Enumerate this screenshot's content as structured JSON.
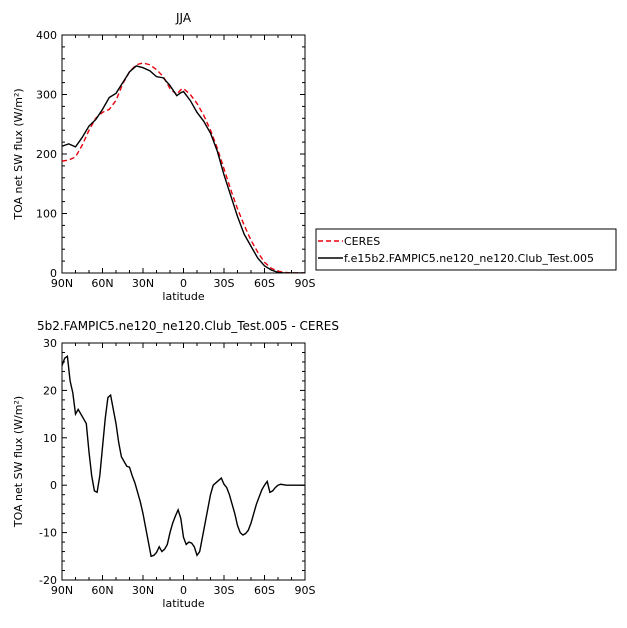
{
  "chart_data": [
    {
      "type": "line",
      "title": "JJA",
      "xlabel": "latitude",
      "ylabel": "TOA net SW flux (W/m²)",
      "xlim": [
        90,
        -90
      ],
      "ylim": [
        0,
        400
      ],
      "xticks": [
        {
          "v": 90,
          "label": "90N"
        },
        {
          "v": 60,
          "label": "60N"
        },
        {
          "v": 30,
          "label": "30N"
        },
        {
          "v": 0,
          "label": "0"
        },
        {
          "v": -30,
          "label": "30S"
        },
        {
          "v": -60,
          "label": "60S"
        },
        {
          "v": -90,
          "label": "90S"
        }
      ],
      "yticks": [
        0,
        100,
        200,
        300,
        400
      ],
      "legend": "right",
      "series": [
        {
          "name": "CERES",
          "color": "#e8000b",
          "dash": "dashed",
          "x": [
            90,
            85,
            80,
            75,
            70,
            65,
            60,
            55,
            50,
            45,
            40,
            35,
            30,
            25,
            20,
            15,
            10,
            5,
            2,
            0,
            -5,
            -10,
            -15,
            -20,
            -25,
            -30,
            -35,
            -40,
            -45,
            -50,
            -55,
            -60,
            -65,
            -70,
            -75,
            -80,
            -90
          ],
          "y": [
            188,
            190,
            195,
            215,
            240,
            260,
            270,
            275,
            290,
            318,
            338,
            350,
            353,
            350,
            342,
            330,
            310,
            300,
            308,
            310,
            300,
            285,
            265,
            240,
            210,
            175,
            140,
            108,
            80,
            55,
            35,
            18,
            8,
            3,
            1,
            0,
            0
          ]
        },
        {
          "name": "f.e15b2.FAMPIC5.ne120_ne120.Club_Test.005",
          "color": "#000000",
          "dash": "solid",
          "x": [
            90,
            85,
            80,
            75,
            70,
            65,
            60,
            55,
            50,
            45,
            40,
            35,
            30,
            25,
            20,
            15,
            10,
            5,
            2,
            0,
            -5,
            -10,
            -15,
            -20,
            -25,
            -30,
            -35,
            -40,
            -45,
            -50,
            -55,
            -60,
            -65,
            -70,
            -75,
            -80,
            -90
          ],
          "y": [
            213,
            217,
            212,
            228,
            247,
            258,
            275,
            295,
            302,
            320,
            338,
            348,
            345,
            340,
            330,
            328,
            315,
            298,
            303,
            305,
            290,
            270,
            255,
            235,
            205,
            165,
            130,
            95,
            65,
            45,
            25,
            12,
            5,
            1,
            0,
            0,
            0
          ]
        }
      ]
    },
    {
      "type": "line",
      "title": "5b2.FAMPIC5.ne120_ne120.Club_Test.005 - CERES",
      "xlabel": "latitude",
      "ylabel": "TOA net SW flux (W/m²)",
      "xlim": [
        90,
        -90
      ],
      "ylim": [
        -20,
        30
      ],
      "xticks": [
        {
          "v": 90,
          "label": "90N"
        },
        {
          "v": 60,
          "label": "60N"
        },
        {
          "v": 30,
          "label": "30N"
        },
        {
          "v": 0,
          "label": "0"
        },
        {
          "v": -30,
          "label": "30S"
        },
        {
          "v": -60,
          "label": "60S"
        },
        {
          "v": -90,
          "label": "90S"
        }
      ],
      "yticks": [
        -20,
        -10,
        0,
        10,
        20,
        30
      ],
      "series": [
        {
          "color": "#000000",
          "dash": "solid",
          "x": [
            90,
            88,
            86,
            84,
            82,
            80,
            78,
            76,
            74,
            72,
            70,
            68,
            66,
            64,
            62,
            60,
            58,
            56,
            54,
            52,
            50,
            48,
            46,
            44,
            42,
            40,
            38,
            36,
            34,
            32,
            30,
            28,
            26,
            24,
            22,
            20,
            18,
            16,
            14,
            12,
            10,
            8,
            6,
            4,
            2,
            0,
            -2,
            -4,
            -6,
            -8,
            -10,
            -12,
            -14,
            -16,
            -18,
            -20,
            -22,
            -24,
            -26,
            -28,
            -30,
            -32,
            -34,
            -36,
            -38,
            -40,
            -42,
            -44,
            -46,
            -48,
            -50,
            -52,
            -54,
            -56,
            -58,
            -60,
            -62,
            -64,
            -66,
            -68,
            -70,
            -72,
            -74,
            -76,
            -78,
            -80,
            -82,
            -84,
            -86,
            -88,
            -90
          ],
          "y": [
            25.2,
            26.8,
            27.2,
            22,
            19.5,
            15,
            16,
            15,
            14,
            13,
            7,
            2,
            -1.2,
            -1.5,
            2,
            8,
            14,
            18.5,
            19,
            16,
            13,
            9,
            6,
            5,
            4,
            3.8,
            2,
            0.5,
            -1.5,
            -3.5,
            -6,
            -9,
            -12,
            -15,
            -14.8,
            -14.2,
            -13,
            -14,
            -13.5,
            -12.5,
            -10,
            -8,
            -6.5,
            -5.2,
            -7,
            -11,
            -12.5,
            -12,
            -12.2,
            -13,
            -14.8,
            -14,
            -11,
            -8,
            -5,
            -2,
            0,
            0.5,
            1,
            1.5,
            0.2,
            -0.5,
            -2,
            -4,
            -6,
            -8.5,
            -10,
            -10.5,
            -10.2,
            -9.5,
            -8,
            -6,
            -4,
            -2.5,
            -1,
            0,
            0.8,
            -1.5,
            -1.2,
            -0.5,
            0,
            0.2,
            0.1,
            0,
            0,
            0,
            0,
            0,
            0,
            0,
            0
          ]
        }
      ]
    }
  ]
}
